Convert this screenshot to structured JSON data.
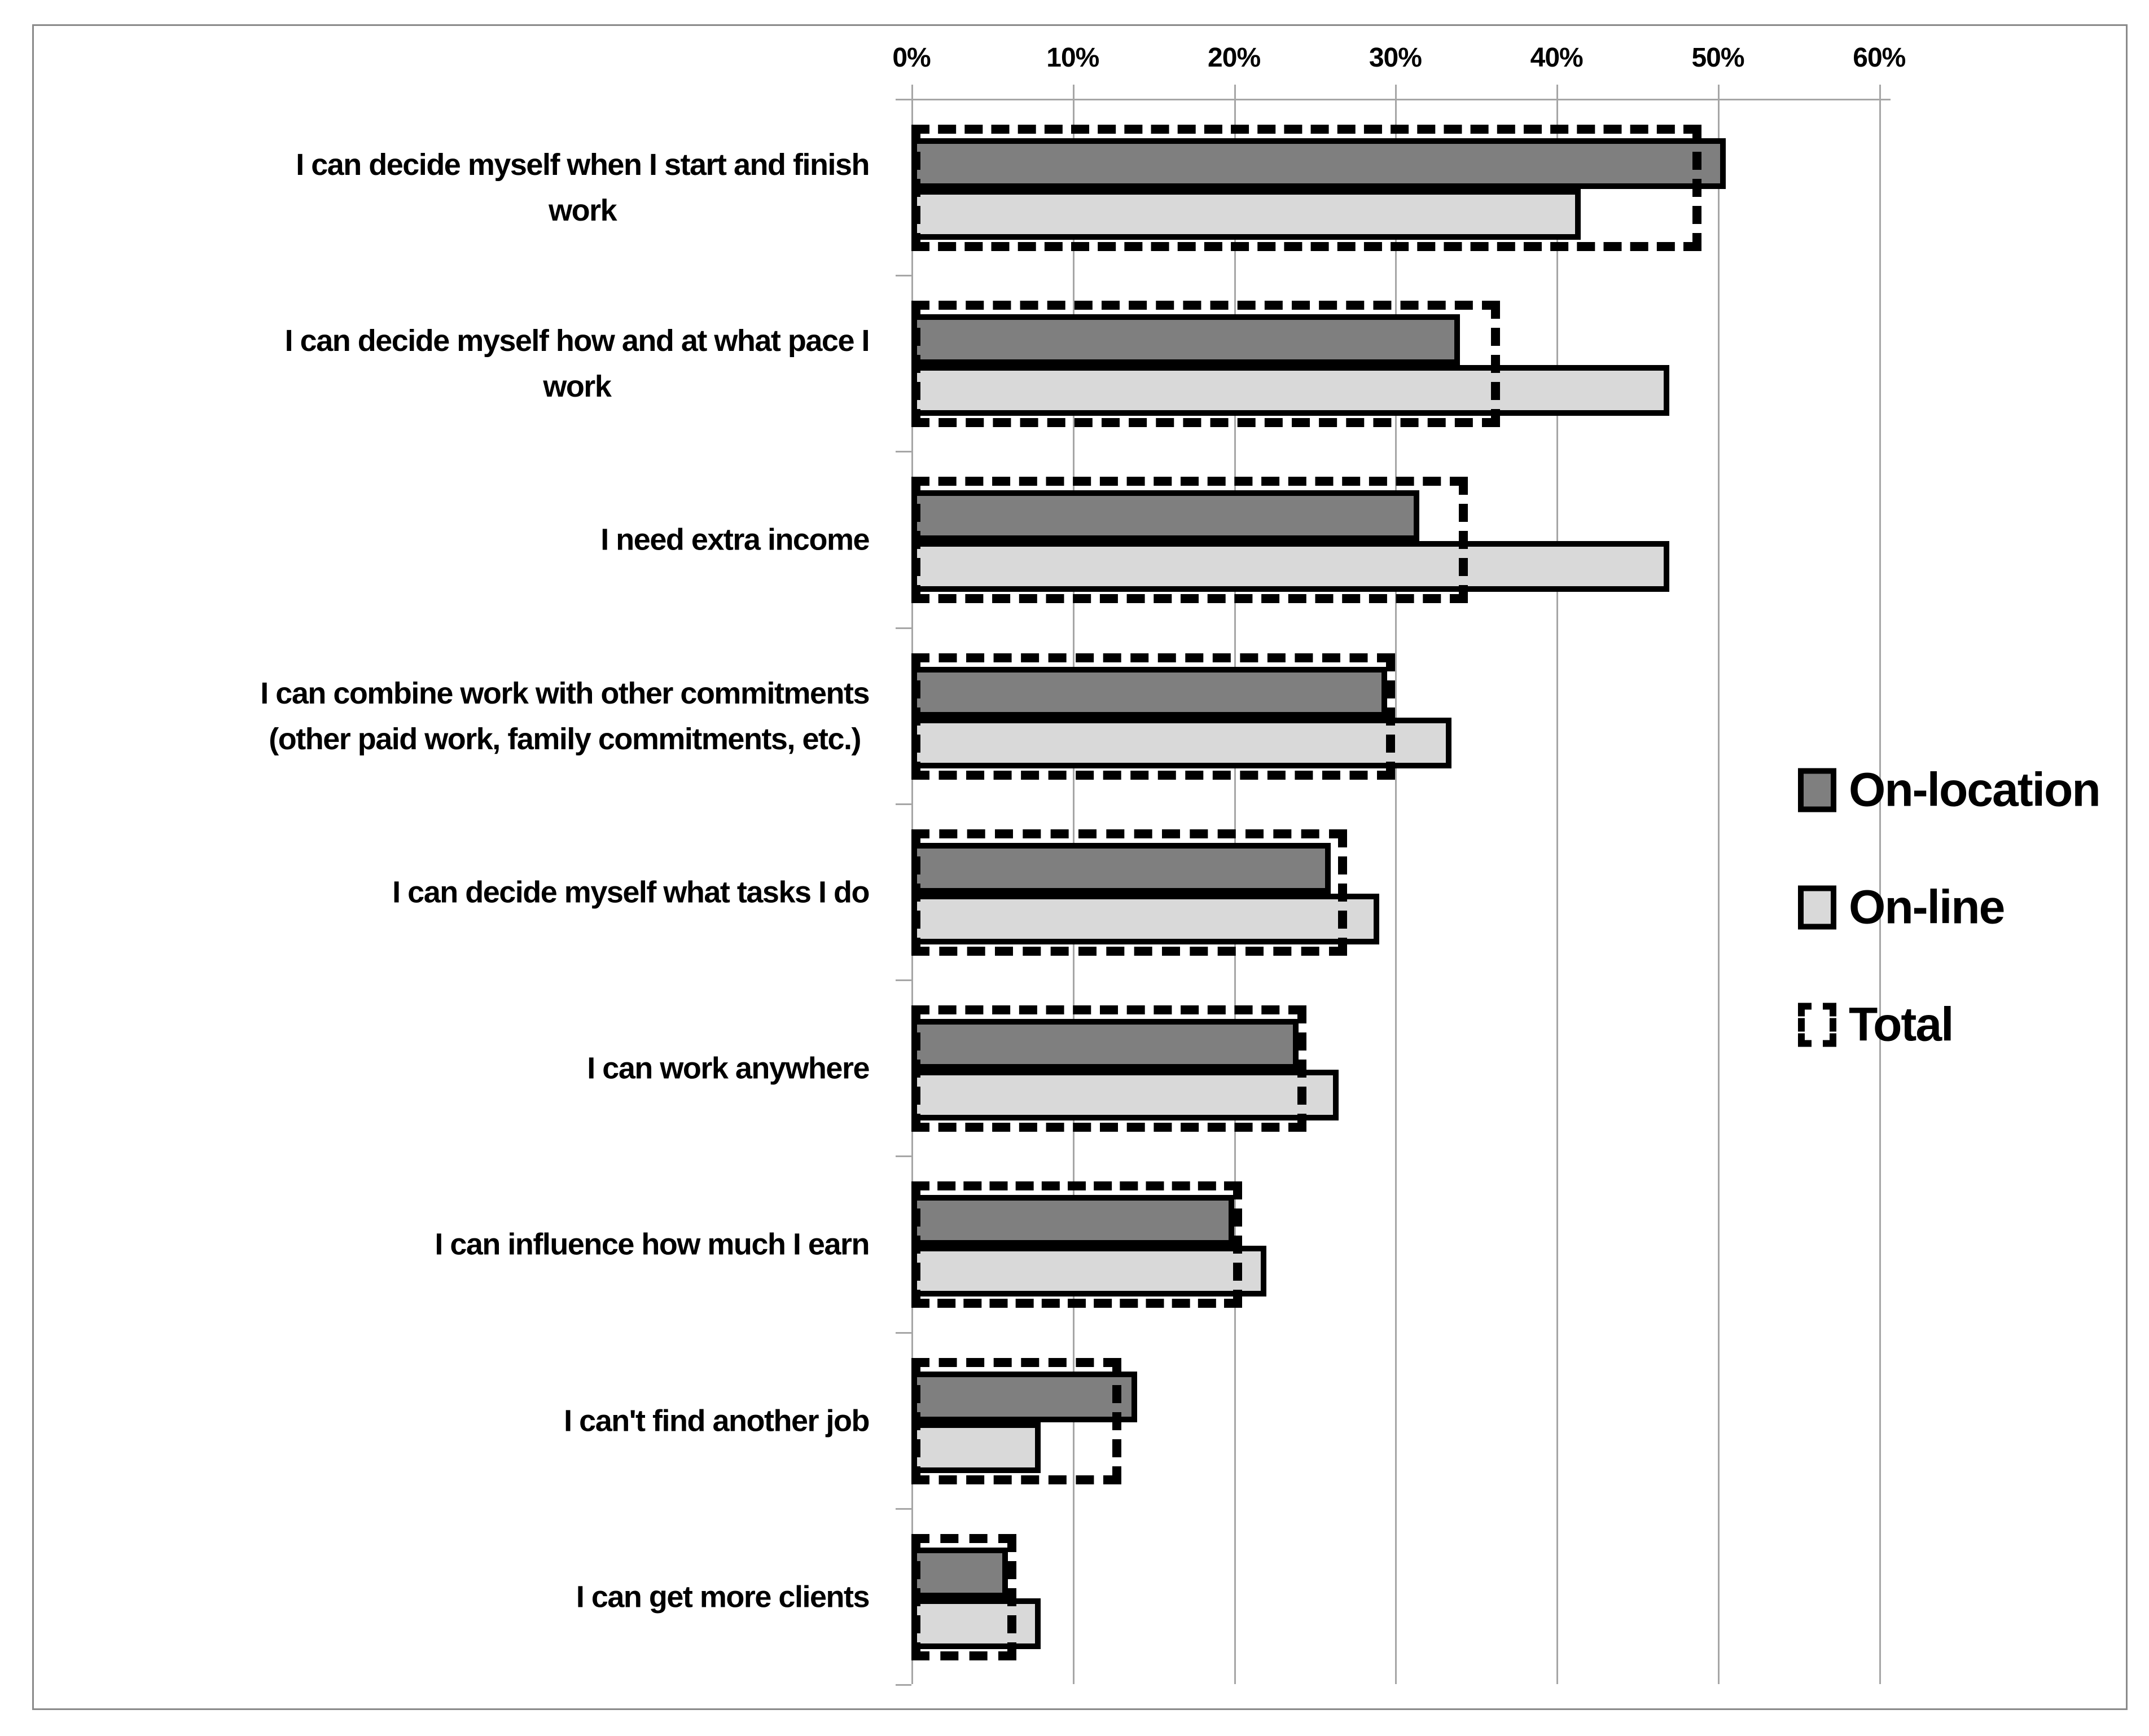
{
  "chart_data": {
    "type": "bar",
    "orientation": "horizontal",
    "title": "",
    "categories": [
      "I can decide myself when I start and finish\nwork",
      "I can decide myself how and at what pace I\nwork",
      "I need extra income",
      "I can combine work with other commitments\n(other paid work, family commitments, etc.)",
      "I can decide myself what tasks I do",
      "I can work anywhere",
      "I can influence how much I earn",
      "I can't find another job",
      "I can get more clients"
    ],
    "series": [
      {
        "name": "On-location",
        "style": "filled",
        "color": "#7f7f7f",
        "values": [
          50.5,
          34,
          31.5,
          29.5,
          26,
          24,
          20,
          14,
          6
        ]
      },
      {
        "name": "On-line",
        "style": "filled",
        "color": "#d9d9d9",
        "values": [
          41.5,
          47,
          47,
          33.5,
          29,
          26.5,
          22,
          8,
          8
        ]
      },
      {
        "name": "Total",
        "style": "dashed-outline",
        "color": "#000000",
        "values": [
          49,
          36.5,
          34.5,
          30,
          27,
          24.5,
          20.5,
          13,
          6.5
        ]
      }
    ],
    "x_axis": {
      "position": "top",
      "min": 0,
      "max": 60,
      "tick_step": 10,
      "tick_labels": [
        "0%",
        "10%",
        "20%",
        "30%",
        "40%",
        "50%",
        "60%"
      ]
    },
    "legend": {
      "position": "right",
      "entries": [
        "On-location",
        "On-line",
        "Total"
      ]
    },
    "grid": true,
    "colors": {
      "grid": "#a6a6a6",
      "axis": "#a6a6a6",
      "bar_border": "#000000",
      "frame": "#8a8a8a",
      "background": "#ffffff"
    }
  }
}
